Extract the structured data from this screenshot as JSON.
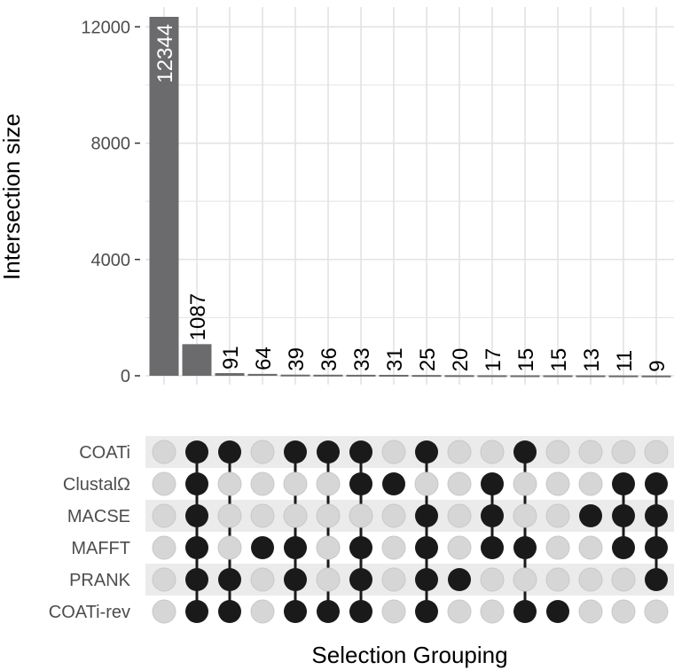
{
  "chart_data": {
    "type": "bar",
    "ylabel": "Intersection size",
    "xlabel": "Selection Grouping",
    "ylim": [
      0,
      12344
    ],
    "yticks": [
      0,
      4000,
      8000,
      12000
    ],
    "sets": [
      "COATi",
      "ClustalΩ",
      "MACSE",
      "MAFFT",
      "PRANK",
      "COATi-rev"
    ],
    "values": [
      12344,
      1087,
      91,
      64,
      39,
      36,
      33,
      31,
      25,
      20,
      17,
      15,
      15,
      13,
      11,
      9
    ],
    "memberships": [
      [],
      [
        "COATi",
        "ClustalΩ",
        "MACSE",
        "MAFFT",
        "PRANK",
        "COATi-rev"
      ],
      [
        "COATi",
        "PRANK",
        "COATi-rev"
      ],
      [
        "MAFFT"
      ],
      [
        "COATi",
        "MAFFT",
        "PRANK",
        "COATi-rev"
      ],
      [
        "COATi",
        "COATi-rev"
      ],
      [
        "COATi",
        "ClustalΩ",
        "MAFFT",
        "PRANK",
        "COATi-rev"
      ],
      [
        "ClustalΩ"
      ],
      [
        "COATi",
        "MACSE",
        "MAFFT",
        "PRANK",
        "COATi-rev"
      ],
      [
        "PRANK"
      ],
      [
        "ClustalΩ",
        "MACSE",
        "MAFFT"
      ],
      [
        "COATi",
        "MAFFT",
        "COATi-rev"
      ],
      [
        "COATi-rev"
      ],
      [
        "MACSE"
      ],
      [
        "ClustalΩ",
        "MACSE",
        "MAFFT"
      ],
      [
        "ClustalΩ",
        "MACSE",
        "MAFFT",
        "PRANK"
      ]
    ],
    "colors": {
      "bar": "#6b6b6e",
      "dot_active": "#1a1a1a",
      "dot_inactive": "#d6d6d6",
      "stripe": "#ebebeb",
      "grid": "#e3e3e3"
    },
    "grid": true
  }
}
